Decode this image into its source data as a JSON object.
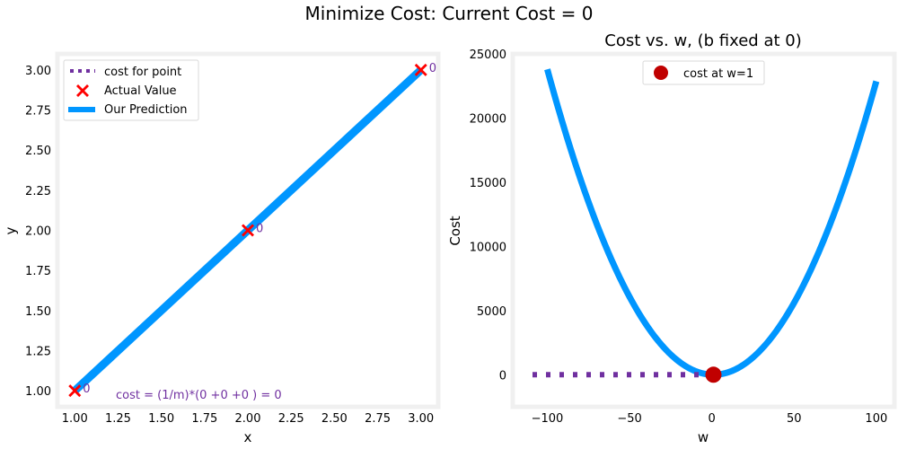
{
  "suptitle": "Minimize Cost: Current Cost = 0",
  "colors": {
    "blue": "#0096ff",
    "red": "#ff0000",
    "dark_red": "#c00000",
    "purple": "#7030a0",
    "frame": "#f0f0f0",
    "text": "#000000"
  },
  "chart_data": [
    {
      "type": "line",
      "title": "",
      "xlabel": "x",
      "ylabel": "y",
      "xlim": [
        0.9,
        3.1
      ],
      "ylim": [
        0.9,
        3.1
      ],
      "xticks": [
        1.0,
        1.25,
        1.5,
        1.75,
        2.0,
        2.25,
        2.5,
        2.75,
        3.0
      ],
      "xtick_labels": [
        "1.00",
        "1.25",
        "1.50",
        "1.75",
        "2.00",
        "2.25",
        "2.50",
        "2.75",
        "3.00"
      ],
      "yticks": [
        1.0,
        1.25,
        1.5,
        1.75,
        2.0,
        2.25,
        2.5,
        2.75,
        3.0
      ],
      "ytick_labels": [
        "1.00",
        "1.25",
        "1.50",
        "1.75",
        "2.00",
        "2.25",
        "2.50",
        "2.75",
        "3.00"
      ],
      "legend": {
        "placement": "upper-left",
        "entries": [
          "cost for point",
          "Actual Value",
          "Our Prediction"
        ]
      },
      "series": [
        {
          "name": "Actual Value",
          "kind": "scatter-x",
          "x": [
            1,
            2,
            3
          ],
          "y": [
            1,
            2,
            3
          ]
        },
        {
          "name": "Our Prediction",
          "kind": "line",
          "x": [
            1,
            3
          ],
          "y": [
            1,
            3
          ]
        }
      ],
      "point_cost_labels": [
        "0",
        "0",
        "0"
      ],
      "annotation": "cost = (1/m)*(0 +0 +0 ) = 0",
      "grid": false
    },
    {
      "type": "line",
      "title": "Cost vs. w, (b fixed at 0)",
      "xlabel": "w",
      "ylabel": "Cost",
      "xlim": [
        -121,
        111
      ],
      "ylim": [
        -2500,
        25000
      ],
      "xticks": [
        -100,
        -50,
        0,
        50,
        100
      ],
      "xtick_labels": [
        "−100",
        "−50",
        "0",
        "50",
        "100"
      ],
      "yticks": [
        0,
        5000,
        10000,
        15000,
        20000,
        25000
      ],
      "ytick_labels": [
        "0",
        "5000",
        "10000",
        "15000",
        "20000",
        "25000"
      ],
      "legend": {
        "placement": "upper-center",
        "entries": [
          "cost at w=1"
        ]
      },
      "series": [
        {
          "name": "cost",
          "kind": "parabola",
          "w_range": [
            -100,
            100
          ],
          "equation": "cost = 2.333*(w-1)^2"
        },
        {
          "name": "cost at w=1",
          "kind": "point",
          "x": [
            1
          ],
          "y": [
            0
          ]
        }
      ],
      "guide_lines": {
        "horizontal_y": 0,
        "vertical_x": 1
      },
      "grid": false
    }
  ]
}
